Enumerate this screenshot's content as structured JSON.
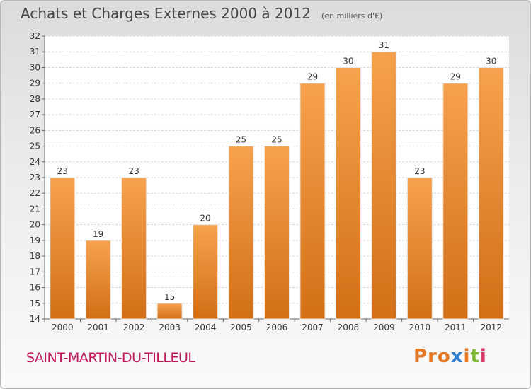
{
  "header": {
    "title": "Achats et Charges Externes 2000 à 2012",
    "subtitle": "(en milliers d'€)"
  },
  "footer": {
    "town": "SAINT-MARTIN-DU-TILLEUL",
    "logo": "Proxiti"
  },
  "colors": {
    "bar_top": "#f7a24e",
    "bar_bottom": "#d26f16",
    "town_text": "#c2185b",
    "logo_letters": [
      "#e87722",
      "#e87722",
      "#e87722",
      "#2e7fd0",
      "#e87722",
      "#7cb82f",
      "#d93a6a"
    ]
  },
  "chart_data": {
    "type": "bar",
    "categories": [
      "2000",
      "2001",
      "2002",
      "2003",
      "2004",
      "2005",
      "2006",
      "2007",
      "2008",
      "2009",
      "2010",
      "2011",
      "2012"
    ],
    "values": [
      23,
      19,
      23,
      15,
      20,
      25,
      25,
      29,
      30,
      31,
      23,
      29,
      30
    ],
    "title": "Achats et Charges Externes 2000 à 2012",
    "subtitle": "(en milliers d'€)",
    "ylim": [
      14,
      32
    ],
    "yticks": [
      14,
      15,
      16,
      17,
      18,
      19,
      20,
      21,
      22,
      23,
      24,
      25,
      26,
      27,
      28,
      29,
      30,
      31,
      32
    ],
    "grid": true,
    "data_labels": true
  }
}
